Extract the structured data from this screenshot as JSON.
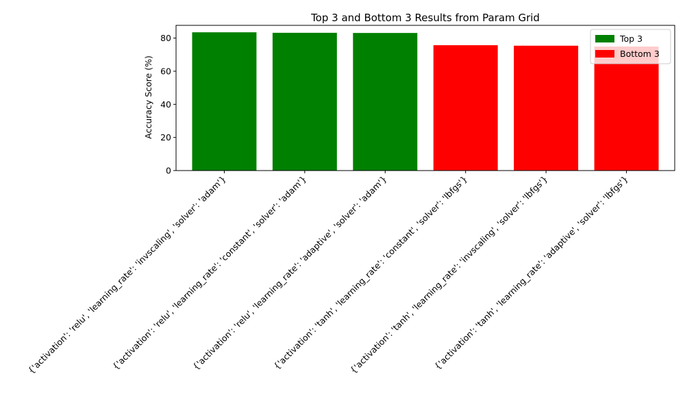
{
  "chart_data": {
    "type": "bar",
    "title": "Top 3 and Bottom 3 Results from Param Grid",
    "xlabel": "",
    "ylabel": "Accuracy Score (%)",
    "ylim": [
      0,
      87.7
    ],
    "yticks": [
      0,
      20,
      40,
      60,
      80
    ],
    "grid": false,
    "legend_position": "top-right",
    "categories": [
      "{'activation': 'relu', 'learning_rate': 'invscaling', 'solver': 'adam'}",
      "{'activation': 'relu', 'learning_rate': 'constant', 'solver': 'adam'}",
      "{'activation': 'relu', 'learning_rate': 'adaptive', 'solver': 'adam'}",
      "{'activation': 'tanh', 'learning_rate': 'constant', 'solver': 'lbfgs'}",
      "{'activation': 'tanh', 'learning_rate': 'invscaling', 'solver': 'lbfgs'}",
      "{'activation': 'tanh', 'learning_rate': 'adaptive', 'solver': 'lbfgs'}"
    ],
    "series": [
      {
        "name": "Top 3",
        "color": "#008000",
        "values": [
          83.5,
          83.2,
          83.1,
          null,
          null,
          null
        ]
      },
      {
        "name": "Bottom 3",
        "color": "#ff0000",
        "values": [
          null,
          null,
          null,
          75.7,
          75.4,
          74.9
        ]
      }
    ]
  }
}
